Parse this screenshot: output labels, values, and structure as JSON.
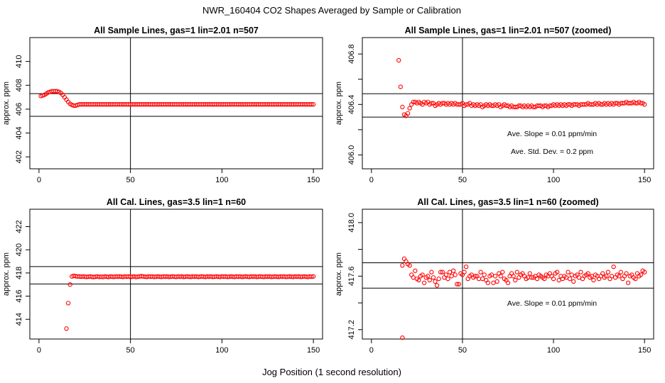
{
  "figure": {
    "title": "NWR_160404  CO2 Shapes Averaged by Sample or Calibration",
    "xlabel": "Jog Position (1 second resolution)"
  },
  "chart_data": [
    {
      "type": "scatter",
      "title": "All Sample Lines, gas=1 lin=2.01 n=507",
      "ylabel": "approx. ppm",
      "xlim": [
        -5,
        155
      ],
      "ylim": [
        401,
        412
      ],
      "xticks": [
        0,
        50,
        100,
        150
      ],
      "yticks": [
        402,
        404,
        406,
        408,
        410
      ],
      "hlines": [
        407.3,
        405.4
      ],
      "vline": 50,
      "marker_color": "#ff0000",
      "annotations": [],
      "points": {
        "x_start": 1,
        "x_end": 150,
        "y": [
          407.1,
          407.15,
          407.2,
          407.3,
          407.4,
          407.45,
          407.5,
          407.5,
          407.5,
          407.5,
          407.45,
          407.35,
          407.2,
          407.0,
          406.8,
          406.6,
          406.45,
          406.35,
          406.3,
          406.3,
          406.35,
          406.4,
          406.4,
          406.4,
          406.4,
          406.4,
          406.4,
          406.4,
          406.4,
          406.4,
          406.4,
          406.4,
          406.4,
          406.4,
          406.4,
          406.4,
          406.4,
          406.4,
          406.4,
          406.4,
          406.4,
          406.4,
          406.4,
          406.4,
          406.4,
          406.4,
          406.4,
          406.4,
          406.4,
          406.4,
          406.4,
          406.4,
          406.4,
          406.4,
          406.4,
          406.4,
          406.4,
          406.4,
          406.4,
          406.4,
          406.4,
          406.4,
          406.4,
          406.4,
          406.4,
          406.4,
          406.4,
          406.4,
          406.4,
          406.4,
          406.4,
          406.4,
          406.4,
          406.4,
          406.4,
          406.4,
          406.4,
          406.4,
          406.4,
          406.4,
          406.4,
          406.4,
          406.4,
          406.4,
          406.4,
          406.4,
          406.4,
          406.4,
          406.4,
          406.4,
          406.4,
          406.4,
          406.4,
          406.4,
          406.4,
          406.4,
          406.4,
          406.4,
          406.4,
          406.4,
          406.4,
          406.4,
          406.4,
          406.4,
          406.4,
          406.4,
          406.4,
          406.4,
          406.4,
          406.4,
          406.4,
          406.4,
          406.4,
          406.4,
          406.4,
          406.4,
          406.4,
          406.4,
          406.4,
          406.4,
          406.4,
          406.4,
          406.4,
          406.4,
          406.4,
          406.4,
          406.4,
          406.4,
          406.4,
          406.4,
          406.4,
          406.4,
          406.4,
          406.4,
          406.4,
          406.4,
          406.4,
          406.4,
          406.4,
          406.4,
          406.4,
          406.4,
          406.4,
          406.4,
          406.4,
          406.4,
          406.4,
          406.4,
          406.4,
          406.4
        ]
      }
    },
    {
      "type": "scatter",
      "title": "All Sample Lines, gas=1 lin=2.01 n=507 (zoomed)",
      "ylabel": "approx. ppm",
      "xlim": [
        -5,
        155
      ],
      "ylim": [
        405.89,
        406.93
      ],
      "xticks": [
        0,
        50,
        100,
        150
      ],
      "yticks": [
        406.0,
        406.2,
        406.4,
        406.6,
        406.8
      ],
      "ytick_labels": [
        "406.0",
        "",
        "406.4",
        "",
        "406.8"
      ],
      "hlines": [
        406.485,
        406.3
      ],
      "vline": 50,
      "marker_color": "#ff0000",
      "annotations": [
        "Ave. Slope =  0.01  ppm/min",
        "Ave. Std. Dev. =  0.2  ppm"
      ],
      "points": {
        "x_start": 15,
        "x_end": 150,
        "y": [
          406.75,
          406.54,
          406.38,
          406.32,
          406.31,
          406.33,
          406.37,
          406.4,
          406.42,
          406.42,
          406.41,
          406.42,
          406.41,
          406.4,
          406.42,
          406.41,
          406.42,
          406.4,
          406.41,
          406.41,
          406.39,
          406.4,
          406.41,
          406.4,
          406.41,
          406.41,
          406.4,
          406.41,
          406.4,
          406.41,
          406.4,
          406.41,
          406.4,
          406.4,
          406.4,
          406.41,
          406.39,
          406.4,
          406.4,
          406.41,
          406.39,
          406.4,
          406.39,
          406.4,
          406.39,
          406.4,
          406.38,
          406.39,
          406.4,
          406.39,
          406.4,
          406.39,
          406.39,
          406.4,
          406.39,
          406.4,
          406.38,
          406.39,
          406.4,
          406.39,
          406.39,
          406.38,
          406.39,
          406.38,
          406.38,
          406.38,
          406.39,
          406.39,
          406.38,
          406.39,
          406.38,
          406.39,
          406.38,
          406.39,
          406.38,
          406.38,
          406.39,
          406.39,
          406.39,
          406.38,
          406.39,
          406.39,
          406.38,
          406.39,
          406.39,
          406.4,
          406.39,
          406.4,
          406.39,
          406.4,
          406.39,
          406.4,
          406.39,
          406.4,
          406.4,
          406.39,
          406.4,
          406.4,
          406.4,
          406.39,
          406.4,
          406.4,
          406.4,
          406.4,
          406.41,
          406.4,
          406.4,
          406.4,
          406.41,
          406.4,
          406.41,
          406.4,
          406.4,
          406.41,
          406.4,
          406.41,
          406.4,
          406.41,
          406.4,
          406.41,
          406.41,
          406.4,
          406.41,
          406.41,
          406.41,
          406.42,
          406.41,
          406.41,
          406.41,
          406.42,
          406.41,
          406.41,
          406.42,
          406.41,
          406.41,
          406.4
        ]
      }
    },
    {
      "type": "scatter",
      "title": "All Cal. Lines, gas=3.5 lin=1 n=60",
      "ylabel": "approx. ppm",
      "xlim": [
        -5,
        155
      ],
      "ylim": [
        412.3,
        423.5
      ],
      "xticks": [
        0,
        50,
        100,
        150
      ],
      "yticks": [
        414,
        416,
        418,
        420,
        422
      ],
      "hlines": [
        418.55,
        417.05
      ],
      "vline": 50,
      "marker_color": "#ff0000",
      "annotations": [],
      "points": {
        "x_start": 15,
        "x_end": 150,
        "y": [
          413.2,
          415.4,
          417.0,
          417.7,
          417.75,
          417.72,
          417.7,
          417.7,
          417.68,
          417.7,
          417.68,
          417.66,
          417.68,
          417.7,
          417.66,
          417.65,
          417.68,
          417.7,
          417.66,
          417.68,
          417.65,
          417.7,
          417.68,
          417.65,
          417.7,
          417.68,
          417.66,
          417.7,
          417.68,
          417.7,
          417.68,
          417.66,
          417.7,
          417.68,
          417.7,
          417.66,
          417.68,
          417.7,
          417.65,
          417.68,
          417.7,
          417.72,
          417.7,
          417.68,
          417.66,
          417.7,
          417.68,
          417.7,
          417.66,
          417.68,
          417.7,
          417.68,
          417.66,
          417.7,
          417.68,
          417.7,
          417.66,
          417.68,
          417.7,
          417.68,
          417.66,
          417.7,
          417.68,
          417.7,
          417.66,
          417.68,
          417.7,
          417.68,
          417.66,
          417.7,
          417.68,
          417.7,
          417.66,
          417.68,
          417.7,
          417.68,
          417.66,
          417.7,
          417.68,
          417.7,
          417.66,
          417.68,
          417.7,
          417.68,
          417.66,
          417.7,
          417.68,
          417.7,
          417.66,
          417.68,
          417.7,
          417.68,
          417.66,
          417.7,
          417.68,
          417.7,
          417.66,
          417.68,
          417.7,
          417.68,
          417.66,
          417.7,
          417.68,
          417.7,
          417.66,
          417.68,
          417.7,
          417.68,
          417.66,
          417.7,
          417.68,
          417.7,
          417.66,
          417.68,
          417.7,
          417.68,
          417.66,
          417.7,
          417.68,
          417.7,
          417.66,
          417.68,
          417.7,
          417.68,
          417.66,
          417.7,
          417.68,
          417.7,
          417.66,
          417.68,
          417.7,
          417.68,
          417.66,
          417.7,
          417.68,
          417.7
        ]
      }
    },
    {
      "type": "scatter",
      "title": "All Cal. Lines, gas=3.5 lin=1 n=60 (zoomed)",
      "ylabel": "approx. ppm",
      "xlim": [
        -5,
        155
      ],
      "ylim": [
        417.13,
        418.1
      ],
      "xticks": [
        0,
        50,
        100,
        150
      ],
      "yticks": [
        417.2,
        417.4,
        417.6,
        417.8,
        418.0
      ],
      "ytick_labels": [
        "417.2",
        "",
        "417.6",
        "",
        "418.0"
      ],
      "hlines": [
        417.7,
        417.51
      ],
      "vline": 50,
      "marker_color": "#ff0000",
      "annotations": [
        "Ave. Slope =  0.01  ppm/min"
      ],
      "points": {
        "x_start": 17,
        "x_end": 150,
        "y": [
          417.68,
          417.73,
          417.71,
          417.69,
          417.68,
          417.61,
          417.59,
          417.64,
          417.58,
          417.57,
          417.6,
          417.61,
          417.55,
          417.59,
          417.6,
          417.57,
          417.63,
          417.59,
          417.56,
          417.53,
          417.58,
          417.63,
          417.63,
          417.59,
          417.61,
          417.58,
          417.63,
          417.6,
          417.64,
          417.61,
          417.54,
          417.54,
          417.62,
          417.61,
          417.63,
          417.67,
          417.58,
          417.6,
          417.61,
          417.59,
          417.6,
          417.6,
          417.58,
          417.63,
          417.58,
          417.61,
          417.57,
          417.55,
          417.6,
          417.61,
          417.55,
          417.6,
          417.56,
          417.62,
          417.6,
          417.63,
          417.58,
          417.57,
          417.55,
          417.6,
          417.62,
          417.6,
          417.57,
          417.63,
          417.59,
          417.61,
          417.62,
          417.6,
          417.58,
          417.59,
          417.62,
          417.59,
          417.59,
          417.6,
          417.58,
          417.61,
          417.6,
          417.59,
          417.58,
          417.61,
          417.6,
          417.62,
          417.6,
          417.58,
          417.62,
          417.63,
          417.57,
          417.6,
          417.58,
          417.6,
          417.59,
          417.63,
          417.58,
          417.61,
          417.56,
          417.6,
          417.61,
          417.59,
          417.63,
          417.58,
          417.6,
          417.61,
          417.62,
          417.59,
          417.6,
          417.57,
          417.61,
          417.6,
          417.58,
          417.6,
          417.62,
          417.59,
          417.6,
          417.63,
          417.58,
          417.6,
          417.67,
          417.59,
          417.61,
          417.6,
          417.63,
          417.58,
          417.6,
          417.62,
          417.55,
          417.6,
          417.61,
          417.59,
          417.58,
          417.62,
          417.6,
          417.61,
          417.64,
          417.63
        ],
        "outliers": [
          {
            "x": 17,
            "y": 417.14
          }
        ]
      }
    }
  ]
}
